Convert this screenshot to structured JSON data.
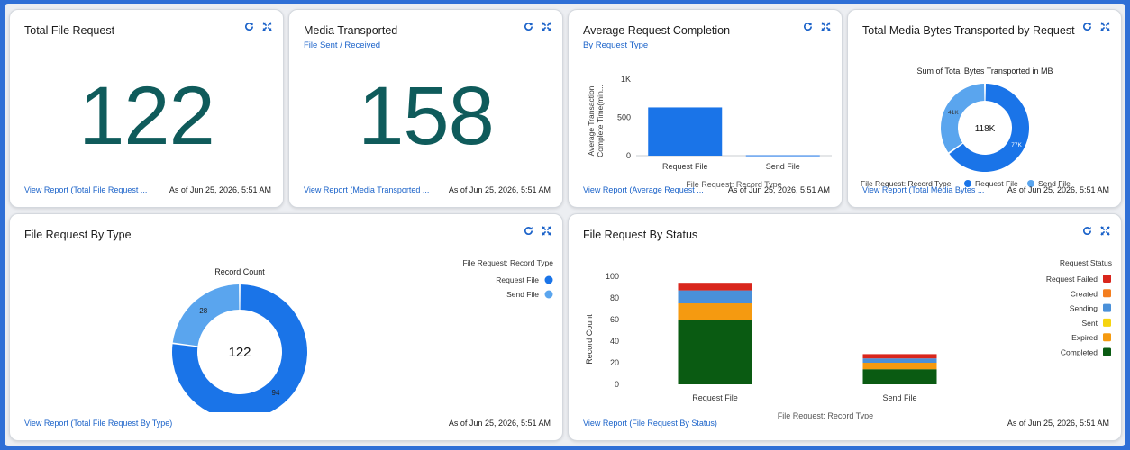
{
  "colors": {
    "accent_link": "#1a62c9",
    "big_number": "#0f5b5b",
    "request_file": "#1a74e8",
    "send_file": "#5aa5ee",
    "status_failed": "#d9261c",
    "status_created": "#f47e1f",
    "status_sending": "#4a90d9",
    "status_sent": "#f5d40f",
    "status_expired": "#f59a10",
    "status_completed": "#0a5b12"
  },
  "icons": {
    "refresh": "refresh-icon",
    "expand": "expand-icon"
  },
  "cards": {
    "total_file_request": {
      "title": "Total File Request",
      "value": "122",
      "view_report": "View Report (Total File Request ...",
      "as_of": "As of Jun 25, 2026, 5:51 AM"
    },
    "media_transported": {
      "title": "Media Transported",
      "subtitle": "File Sent / Received",
      "value": "158",
      "view_report": "View Report (Media Transported ...",
      "as_of": "As of Jun 25, 2026, 5:51 AM"
    },
    "avg_completion": {
      "title": "Average Request Completion",
      "subtitle": "By Request Type",
      "view_report": "View Report (Average Request ...",
      "as_of": "As of Jun 25, 2026, 5:51 AM"
    },
    "media_bytes": {
      "title": "Total Media Bytes Transported by Request",
      "view_report": "View Report (Total Media Bytes ...",
      "as_of": "As of Jun 25, 2026, 5:51 AM"
    },
    "by_type": {
      "title": "File Request By Type",
      "view_report": "View Report (Total File Request By Type)",
      "as_of": "As of Jun 25, 2026, 5:51 AM"
    },
    "by_status": {
      "title": "File Request By Status",
      "view_report": "View Report (File Request By Status)",
      "as_of": "As of Jun 25, 2026, 5:51 AM"
    }
  },
  "chart_data": [
    {
      "id": "avg_completion",
      "type": "bar",
      "categories": [
        "Request File",
        "Send File"
      ],
      "values": [
        630,
        5
      ],
      "xlabel": "File Request: Record Type",
      "ylabel": "Average Transaction Complete Time(min...",
      "yticks": [
        "0",
        "500",
        "1K"
      ],
      "ylim": [
        0,
        1000
      ]
    },
    {
      "id": "media_bytes",
      "type": "pie",
      "donut": true,
      "title": "Sum of Total Bytes Transported in MB",
      "center_label": "118K",
      "categories": [
        "Request File",
        "Send File"
      ],
      "values": [
        77,
        41
      ],
      "slice_labels": [
        "77K",
        "41K"
      ],
      "legend_title": "File Request: Record Type",
      "legend_position": "bottom"
    },
    {
      "id": "by_type",
      "type": "pie",
      "donut": true,
      "title": "Record Count",
      "center_label": "122",
      "categories": [
        "Request File",
        "Send File"
      ],
      "values": [
        94,
        28
      ],
      "legend_title": "File Request: Record Type",
      "legend_position": "top-right"
    },
    {
      "id": "by_status",
      "type": "bar",
      "stacked": true,
      "categories": [
        "Request File",
        "Send File"
      ],
      "series": [
        {
          "name": "Completed",
          "values": [
            60,
            14
          ]
        },
        {
          "name": "Expired",
          "values": [
            15,
            6
          ]
        },
        {
          "name": "Sent",
          "values": [
            0,
            0
          ]
        },
        {
          "name": "Sending",
          "values": [
            12,
            4
          ]
        },
        {
          "name": "Created",
          "values": [
            0,
            0
          ]
        },
        {
          "name": "Request Failed",
          "values": [
            7,
            4
          ]
        }
      ],
      "legend_order": [
        "Request Failed",
        "Created",
        "Sending",
        "Sent",
        "Expired",
        "Completed"
      ],
      "legend_title": "Request Status",
      "legend_position": "right",
      "xlabel": "File Request: Record Type",
      "ylabel": "Record Count",
      "yticks": [
        "0",
        "20",
        "40",
        "60",
        "80",
        "100"
      ],
      "ylim": [
        0,
        100
      ]
    }
  ]
}
